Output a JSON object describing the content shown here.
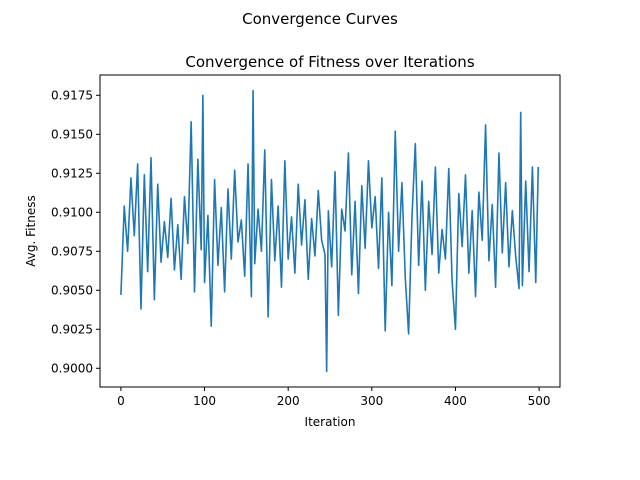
{
  "figure": {
    "suptitle": "Convergence Curves"
  },
  "chart_data": {
    "type": "line",
    "title": "Convergence of Fitness over Iterations",
    "xlabel": "Iteration",
    "ylabel": "Avg. Fitness",
    "xlim": [
      -25,
      525
    ],
    "ylim": [
      0.8988,
      0.9188
    ],
    "xticks": [
      0,
      100,
      200,
      300,
      400,
      500
    ],
    "xtick_labels": [
      "0",
      "100",
      "200",
      "300",
      "400",
      "500"
    ],
    "yticks": [
      0.9,
      0.9025,
      0.905,
      0.9075,
      0.91,
      0.9125,
      0.915,
      0.9175
    ],
    "ytick_labels": [
      "0.9000",
      "0.9025",
      "0.9050",
      "0.9075",
      "0.9100",
      "0.9125",
      "0.9150",
      "0.9175"
    ],
    "grid": false,
    "line_color": "#1f77b4",
    "series": [
      {
        "x": [
          0,
          4,
          8,
          12,
          16,
          20,
          24,
          28,
          32,
          36,
          40,
          44,
          48,
          52,
          56,
          60,
          64,
          68,
          72,
          76,
          80,
          84,
          88,
          92,
          96,
          98,
          100,
          104,
          108,
          112,
          116,
          120,
          124,
          128,
          132,
          136,
          140,
          144,
          148,
          152,
          156,
          158,
          160,
          164,
          168,
          172,
          176,
          180,
          184,
          188,
          192,
          196,
          200,
          204,
          208,
          212,
          216,
          220,
          224,
          228,
          232,
          236,
          240,
          244,
          246,
          248,
          252,
          256,
          260,
          264,
          268,
          272,
          276,
          280,
          284,
          288,
          292,
          296,
          300,
          304,
          308,
          312,
          316,
          320,
          324,
          328,
          332,
          336,
          340,
          344,
          348,
          352,
          356,
          360,
          364,
          368,
          372,
          376,
          380,
          384,
          388,
          392,
          396,
          400,
          404,
          408,
          412,
          416,
          420,
          424,
          428,
          432,
          436,
          440,
          444,
          448,
          452,
          456,
          460,
          464,
          468,
          472,
          476,
          478,
          480,
          484,
          488,
          492,
          496,
          499
        ],
        "y": [
          0.9047,
          0.9104,
          0.9075,
          0.9122,
          0.9085,
          0.9131,
          0.9038,
          0.9124,
          0.9062,
          0.9135,
          0.9044,
          0.9118,
          0.9068,
          0.9094,
          0.9071,
          0.9109,
          0.9063,
          0.9092,
          0.9057,
          0.911,
          0.908,
          0.9158,
          0.9049,
          0.9134,
          0.9076,
          0.9175,
          0.9055,
          0.9098,
          0.9027,
          0.9121,
          0.9066,
          0.9103,
          0.9049,
          0.9115,
          0.907,
          0.9127,
          0.9081,
          0.9095,
          0.9059,
          0.9131,
          0.9046,
          0.9178,
          0.9067,
          0.9102,
          0.9075,
          0.914,
          0.9033,
          0.9121,
          0.9069,
          0.9104,
          0.9052,
          0.9133,
          0.907,
          0.9097,
          0.9061,
          0.9118,
          0.9079,
          0.9108,
          0.9057,
          0.9096,
          0.9072,
          0.9114,
          0.9082,
          0.9073,
          0.8998,
          0.9101,
          0.9065,
          0.9126,
          0.9034,
          0.9102,
          0.9088,
          0.9138,
          0.906,
          0.9107,
          0.9048,
          0.9117,
          0.9077,
          0.9133,
          0.909,
          0.911,
          0.9064,
          0.9122,
          0.9024,
          0.91,
          0.9053,
          0.9152,
          0.9075,
          0.9119,
          0.9058,
          0.9022,
          0.9097,
          0.9144,
          0.9066,
          0.912,
          0.905,
          0.9107,
          0.9073,
          0.9129,
          0.9061,
          0.9089,
          0.907,
          0.9128,
          0.9056,
          0.9025,
          0.9112,
          0.9078,
          0.9124,
          0.9061,
          0.9101,
          0.9046,
          0.9113,
          0.9082,
          0.9156,
          0.9069,
          0.9105,
          0.9052,
          0.9138,
          0.9074,
          0.9119,
          0.9065,
          0.9101,
          0.9072,
          0.9051,
          0.9164,
          0.9053,
          0.912,
          0.9062,
          0.9129,
          0.9055,
          0.9129
        ]
      }
    ]
  }
}
